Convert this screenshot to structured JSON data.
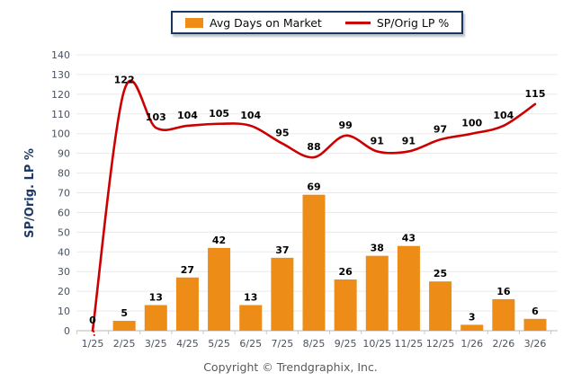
{
  "legend": {
    "items": [
      {
        "label": "Avg Days on Market",
        "swatch": "bar-swatch-icon"
      },
      {
        "label": "SP/Orig LP %",
        "swatch": "line-swatch-icon"
      }
    ]
  },
  "chart_data": {
    "type": "combo",
    "categories": [
      "1/25",
      "2/25",
      "3/25",
      "4/25",
      "5/25",
      "6/25",
      "7/25",
      "8/25",
      "9/25",
      "10/25",
      "11/25",
      "12/25",
      "1/26",
      "2/26",
      "3/26"
    ],
    "series": [
      {
        "name": "Avg Days on Market",
        "type": "bar",
        "color": "#ed8c16",
        "values": [
          0,
          5,
          13,
          27,
          42,
          13,
          37,
          69,
          26,
          38,
          43,
          25,
          3,
          16,
          6
        ]
      },
      {
        "name": "SP/Orig LP %",
        "type": "line",
        "color": "#cc0000",
        "values": [
          0,
          122,
          103,
          104,
          105,
          104,
          95,
          88,
          99,
          91,
          91,
          97,
          100,
          104,
          115
        ]
      }
    ],
    "xlabel": "",
    "ylabel": "SP/Orig. LP %",
    "ylim": [
      0,
      140
    ],
    "ytick_step": 10,
    "grid": true,
    "legend_position": "top",
    "data_labels": true
  },
  "footer": {
    "copyright": "Copyright © Trendgraphix, Inc."
  },
  "colors": {
    "bar": "#ed8c16",
    "line": "#cc0000",
    "axis_title": "#1f3864",
    "tick_text": "#4a5261",
    "gridline": "#eaeaea",
    "axis_line": "#c8c8c8",
    "data_label": "#000000",
    "legend_border": "#17375e"
  }
}
